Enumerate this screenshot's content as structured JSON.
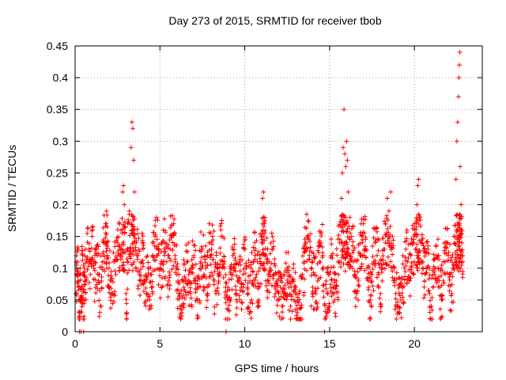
{
  "chart_data": {
    "type": "scatter",
    "title": "Day 273 of 2015, SRMTID for receiver tbob",
    "xlabel": "GPS time / hours",
    "ylabel": "SRMTID / TECUs",
    "xlim": [
      0,
      24
    ],
    "ylim": [
      0,
      0.45
    ],
    "x_ticks": [
      0,
      5,
      10,
      15,
      20
    ],
    "x_tick_labels": [
      "0",
      "5",
      "10",
      "15",
      "20"
    ],
    "y_ticks": [
      0,
      0.05,
      0.1,
      0.15,
      0.2,
      0.25,
      0.3,
      0.35,
      0.4,
      0.45
    ],
    "y_tick_labels": [
      "0",
      "0.05",
      "0.1",
      "0.15",
      "0.2",
      "0.25",
      "0.3",
      "0.35",
      "0.4",
      "0.45"
    ],
    "grid": true,
    "marker": "plus",
    "color": "#ff0000",
    "series": [
      {
        "name": "SRMTID",
        "points": [
          [
            0.05,
            0.06
          ],
          [
            0.1,
            0.09
          ],
          [
            0.15,
            0.11
          ],
          [
            0.2,
            0.08
          ],
          [
            0.25,
            0.0
          ],
          [
            0.3,
            0.1
          ],
          [
            0.35,
            0.0
          ],
          [
            0.4,
            0.07
          ],
          [
            0.45,
            0.12
          ],
          [
            0.5,
            0.0
          ],
          [
            0.55,
            0.1
          ],
          [
            0.6,
            0.08
          ],
          [
            0.7,
            0.11
          ],
          [
            0.8,
            0.13
          ],
          [
            0.9,
            0.09
          ],
          [
            1.0,
            0.15
          ],
          [
            1.1,
            0.1
          ],
          [
            1.2,
            0.07
          ],
          [
            1.3,
            0.12
          ],
          [
            1.4,
            0.09
          ],
          [
            1.5,
            0.04
          ],
          [
            1.6,
            0.11
          ],
          [
            1.7,
            0.14
          ],
          [
            1.8,
            0.17
          ],
          [
            1.85,
            0.19
          ],
          [
            1.9,
            0.12
          ],
          [
            2.0,
            0.1
          ],
          [
            2.1,
            0.08
          ],
          [
            2.2,
            0.06
          ],
          [
            2.3,
            0.11
          ],
          [
            2.4,
            0.09
          ],
          [
            2.5,
            0.14
          ],
          [
            2.6,
            0.12
          ],
          [
            2.7,
            0.16
          ],
          [
            2.8,
            0.22
          ],
          [
            2.85,
            0.23
          ],
          [
            2.9,
            0.2
          ],
          [
            3.0,
            0.06
          ],
          [
            3.05,
            0.03
          ],
          [
            3.1,
            0.17
          ],
          [
            3.2,
            0.19
          ],
          [
            3.3,
            0.29
          ],
          [
            3.35,
            0.33
          ],
          [
            3.4,
            0.32
          ],
          [
            3.45,
            0.27
          ],
          [
            3.5,
            0.22
          ],
          [
            3.6,
            0.14
          ],
          [
            3.7,
            0.12
          ],
          [
            3.8,
            0.09
          ],
          [
            3.9,
            0.11
          ],
          [
            4.0,
            0.13
          ],
          [
            4.1,
            0.08
          ],
          [
            4.2,
            0.06
          ],
          [
            4.3,
            0.1
          ],
          [
            4.4,
            0.05
          ],
          [
            4.5,
            0.09
          ],
          [
            4.6,
            0.12
          ],
          [
            4.7,
            0.15
          ],
          [
            4.8,
            0.18
          ],
          [
            4.9,
            0.13
          ],
          [
            5.0,
            0.1
          ],
          [
            5.1,
            0.07
          ],
          [
            5.2,
            0.16
          ],
          [
            5.3,
            0.14
          ],
          [
            5.4,
            0.11
          ],
          [
            5.5,
            0.08
          ],
          [
            5.6,
            0.13
          ],
          [
            5.7,
            0.15
          ],
          [
            5.8,
            0.17
          ],
          [
            5.9,
            0.12
          ],
          [
            6.0,
            0.09
          ],
          [
            6.1,
            0.06
          ],
          [
            6.2,
            0.04
          ],
          [
            6.3,
            0.03
          ],
          [
            6.4,
            0.07
          ],
          [
            6.5,
            0.08
          ],
          [
            6.6,
            0.11
          ],
          [
            6.7,
            0.09
          ],
          [
            6.8,
            0.06
          ],
          [
            6.9,
            0.1
          ],
          [
            7.0,
            0.12
          ],
          [
            7.1,
            0.08
          ],
          [
            7.2,
            0.05
          ],
          [
            7.3,
            0.07
          ],
          [
            7.4,
            0.11
          ],
          [
            7.5,
            0.13
          ],
          [
            7.6,
            0.09
          ],
          [
            7.7,
            0.1
          ],
          [
            7.8,
            0.06
          ],
          [
            7.9,
            0.14
          ],
          [
            8.0,
            0.12
          ],
          [
            8.1,
            0.15
          ],
          [
            8.2,
            0.08
          ],
          [
            8.3,
            0.06
          ],
          [
            8.4,
            0.1
          ],
          [
            8.5,
            0.09
          ],
          [
            8.6,
            0.16
          ],
          [
            8.7,
            0.15
          ],
          [
            8.8,
            0.11
          ],
          [
            8.9,
            0.0
          ],
          [
            9.0,
            0.07
          ],
          [
            9.1,
            0.05
          ],
          [
            9.2,
            0.09
          ],
          [
            9.3,
            0.12
          ],
          [
            9.4,
            0.1
          ],
          [
            9.5,
            0.06
          ],
          [
            9.6,
            0.08
          ],
          [
            9.7,
            0.11
          ],
          [
            9.8,
            0.07
          ],
          [
            9.9,
            0.09
          ],
          [
            10.0,
            0.13
          ],
          [
            10.1,
            0.1
          ],
          [
            10.2,
            0.06
          ],
          [
            10.3,
            0.08
          ],
          [
            10.4,
            0.05
          ],
          [
            10.5,
            0.11
          ],
          [
            10.6,
            0.12
          ],
          [
            10.7,
            0.09
          ],
          [
            10.8,
            0.07
          ],
          [
            10.9,
            0.1
          ],
          [
            11.0,
            0.14
          ],
          [
            11.05,
            0.21
          ],
          [
            11.1,
            0.22
          ],
          [
            11.15,
            0.17
          ],
          [
            11.2,
            0.12
          ],
          [
            11.3,
            0.11
          ],
          [
            11.4,
            0.08
          ],
          [
            11.5,
            0.1
          ],
          [
            11.6,
            0.13
          ],
          [
            11.7,
            0.09
          ],
          [
            11.8,
            0.06
          ],
          [
            11.9,
            0.08
          ],
          [
            12.0,
            0.05
          ],
          [
            12.1,
            0.07
          ],
          [
            12.2,
            0.04
          ],
          [
            12.3,
            0.09
          ],
          [
            12.4,
            0.06
          ],
          [
            12.5,
            0.1
          ],
          [
            12.6,
            0.07
          ],
          [
            12.7,
            0.04
          ],
          [
            12.8,
            0.08
          ],
          [
            12.9,
            0.05
          ],
          [
            13.0,
            0.07
          ],
          [
            13.1,
            0.03
          ],
          [
            13.2,
            0.06
          ],
          [
            13.3,
            0.02
          ],
          [
            13.4,
            0.09
          ],
          [
            13.5,
            0.11
          ],
          [
            13.6,
            0.13
          ],
          [
            13.7,
            0.15
          ],
          [
            13.8,
            0.12
          ],
          [
            13.9,
            0.1
          ],
          [
            14.0,
            0.07
          ],
          [
            14.1,
            0.09
          ],
          [
            14.2,
            0.06
          ],
          [
            14.3,
            0.08
          ],
          [
            14.4,
            0.11
          ],
          [
            14.5,
            0.14
          ],
          [
            14.6,
            0.12
          ],
          [
            14.7,
            0.0
          ],
          [
            14.8,
            0.08
          ],
          [
            14.9,
            0.06
          ],
          [
            15.0,
            0.09
          ],
          [
            15.1,
            0.12
          ],
          [
            15.2,
            0.07
          ],
          [
            15.3,
            0.05
          ],
          [
            15.4,
            0.08
          ],
          [
            15.5,
            0.11
          ],
          [
            15.6,
            0.14
          ],
          [
            15.7,
            0.21
          ],
          [
            15.75,
            0.25
          ],
          [
            15.8,
            0.29
          ],
          [
            15.85,
            0.35
          ],
          [
            15.9,
            0.28
          ],
          [
            15.95,
            0.26
          ],
          [
            16.0,
            0.3
          ],
          [
            16.05,
            0.27
          ],
          [
            16.1,
            0.22
          ],
          [
            16.2,
            0.18
          ],
          [
            16.3,
            0.15
          ],
          [
            16.4,
            0.11
          ],
          [
            16.5,
            0.09
          ],
          [
            16.6,
            0.06
          ],
          [
            16.7,
            0.08
          ],
          [
            16.8,
            0.12
          ],
          [
            16.9,
            0.15
          ],
          [
            17.0,
            0.17
          ],
          [
            17.1,
            0.13
          ],
          [
            17.2,
            0.1
          ],
          [
            17.3,
            0.07
          ],
          [
            17.4,
            0.05
          ],
          [
            17.5,
            0.09
          ],
          [
            17.6,
            0.11
          ],
          [
            17.7,
            0.14
          ],
          [
            17.8,
            0.12
          ],
          [
            17.9,
            0.09
          ],
          [
            18.0,
            0.06
          ],
          [
            18.1,
            0.08
          ],
          [
            18.2,
            0.13
          ],
          [
            18.3,
            0.17
          ],
          [
            18.4,
            0.21
          ],
          [
            18.5,
            0.19
          ],
          [
            18.6,
            0.22
          ],
          [
            18.7,
            0.15
          ],
          [
            18.8,
            0.1
          ],
          [
            18.9,
            0.06
          ],
          [
            19.0,
            0.04
          ],
          [
            19.1,
            0.03
          ],
          [
            19.2,
            0.05
          ],
          [
            19.3,
            0.07
          ],
          [
            19.4,
            0.1
          ],
          [
            19.5,
            0.13
          ],
          [
            19.6,
            0.11
          ],
          [
            19.7,
            0.08
          ],
          [
            19.8,
            0.12
          ],
          [
            19.9,
            0.14
          ],
          [
            20.0,
            0.11
          ],
          [
            20.1,
            0.15
          ],
          [
            20.15,
            0.2
          ],
          [
            20.2,
            0.23
          ],
          [
            20.25,
            0.24
          ],
          [
            20.3,
            0.18
          ],
          [
            20.4,
            0.14
          ],
          [
            20.5,
            0.11
          ],
          [
            20.6,
            0.08
          ],
          [
            20.7,
            0.1
          ],
          [
            20.8,
            0.13
          ],
          [
            20.9,
            0.06
          ],
          [
            21.0,
            0.04
          ],
          [
            21.1,
            0.07
          ],
          [
            21.2,
            0.09
          ],
          [
            21.3,
            0.12
          ],
          [
            21.4,
            0.1
          ],
          [
            21.5,
            0.07
          ],
          [
            21.6,
            0.05
          ],
          [
            21.7,
            0.08
          ],
          [
            21.8,
            0.11
          ],
          [
            21.9,
            0.14
          ],
          [
            22.0,
            0.12
          ],
          [
            22.1,
            0.09
          ],
          [
            22.2,
            0.06
          ],
          [
            22.3,
            0.1
          ],
          [
            22.4,
            0.15
          ],
          [
            22.45,
            0.24
          ],
          [
            22.5,
            0.3
          ],
          [
            22.55,
            0.33
          ],
          [
            22.6,
            0.37
          ],
          [
            22.62,
            0.4
          ],
          [
            22.65,
            0.42
          ],
          [
            22.68,
            0.44
          ],
          [
            22.7,
            0.26
          ],
          [
            22.75,
            0.2
          ],
          [
            22.8,
            0.14
          ],
          [
            22.85,
            0.11
          ]
        ]
      }
    ]
  }
}
